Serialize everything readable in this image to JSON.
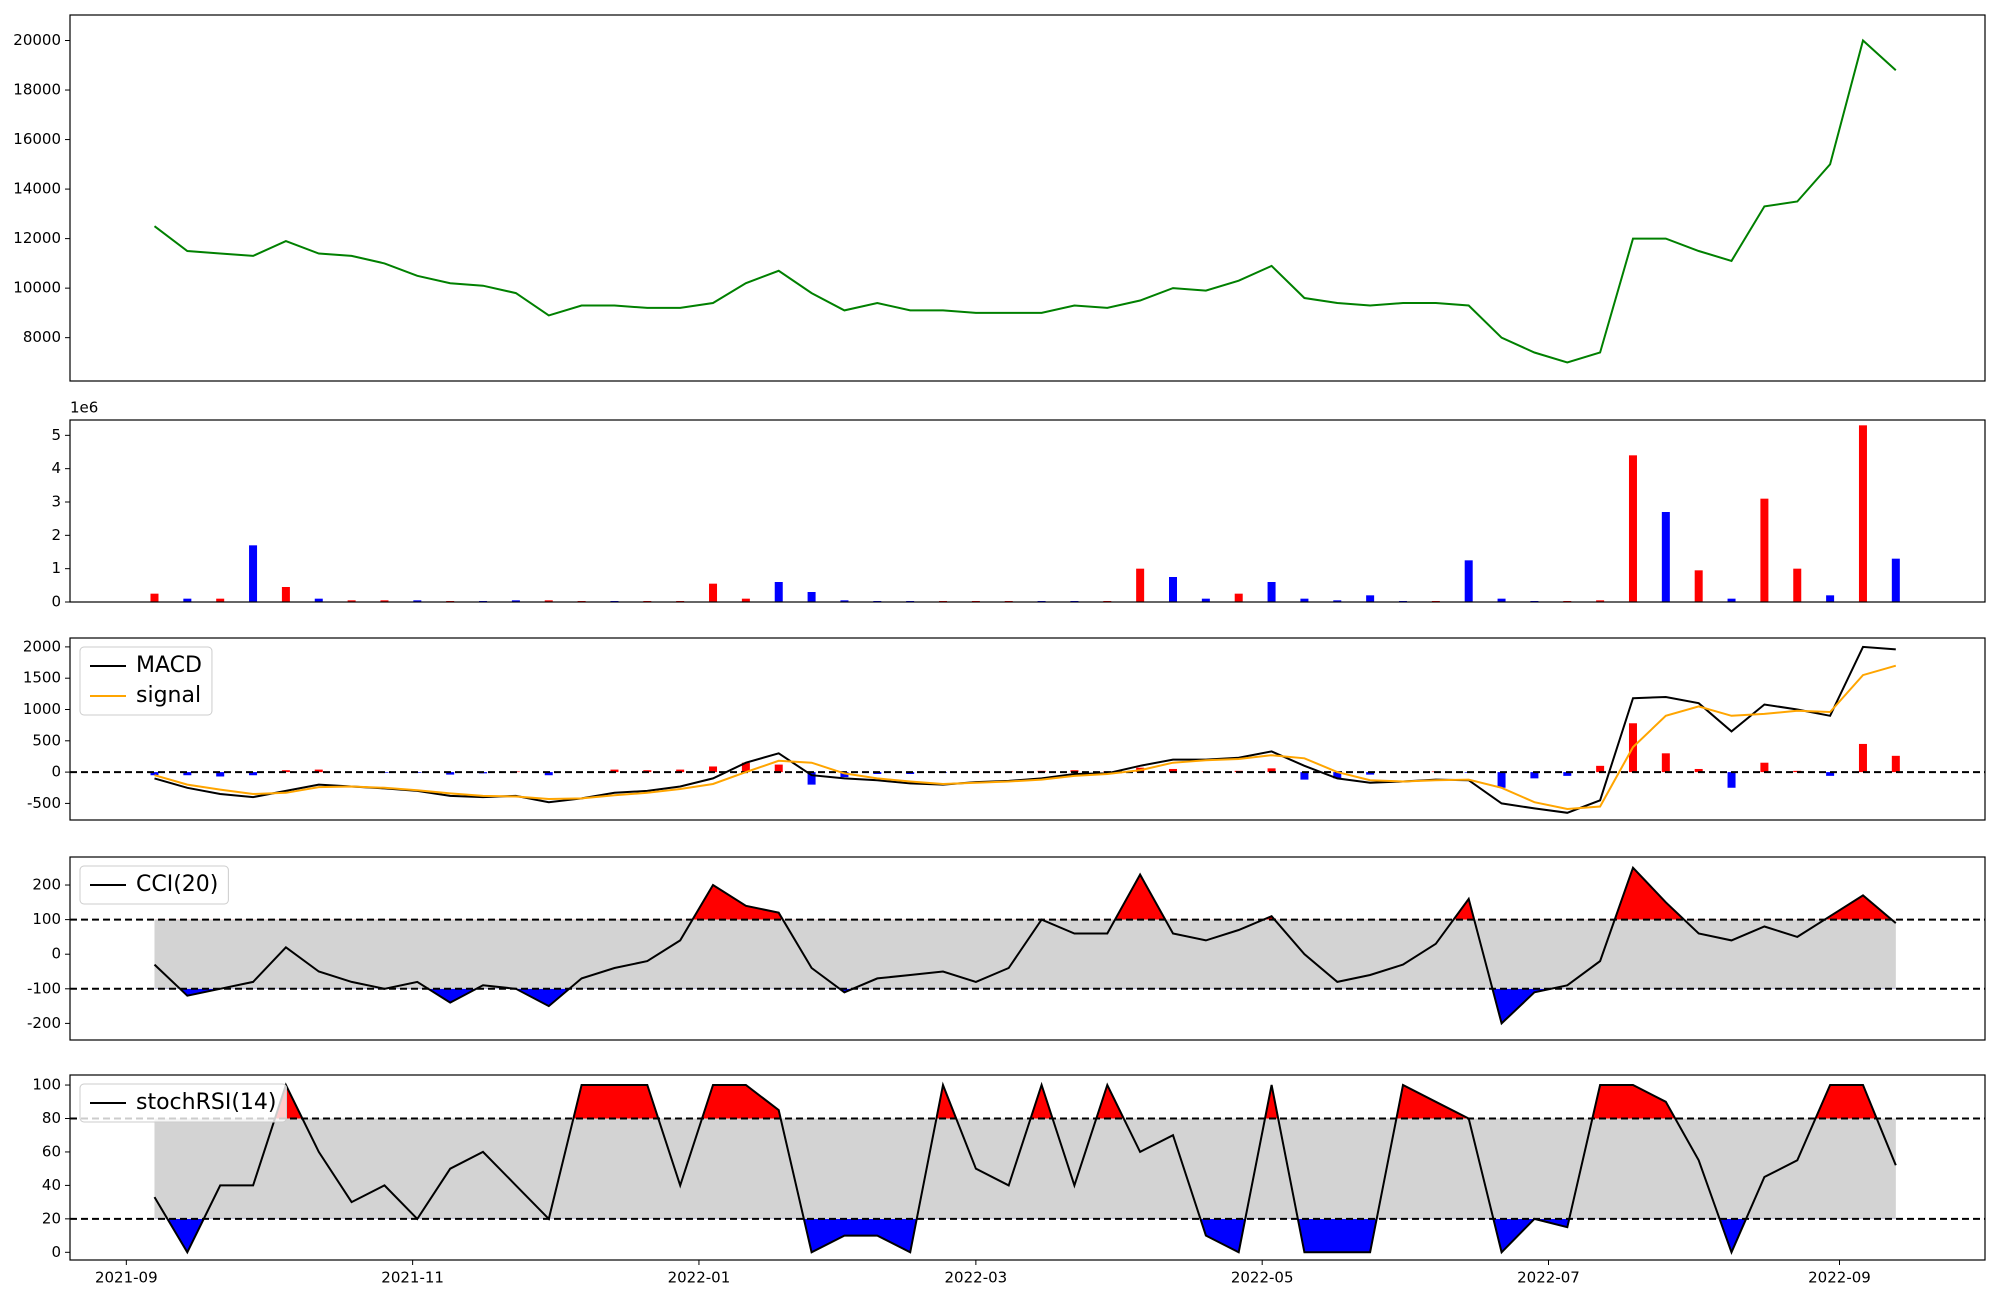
{
  "chart_data": [
    {
      "type": "line",
      "color": "#008000",
      "x": [
        "2021-09-07",
        "2021-09-14",
        "2021-09-21",
        "2021-09-28",
        "2021-10-05",
        "2021-10-12",
        "2021-10-19",
        "2021-10-26",
        "2021-11-02",
        "2021-11-09",
        "2021-11-16",
        "2021-11-23",
        "2021-11-30",
        "2021-12-07",
        "2021-12-14",
        "2021-12-21",
        "2021-12-28",
        "2022-01-04",
        "2022-01-11",
        "2022-01-18",
        "2022-01-25",
        "2022-02-01",
        "2022-02-08",
        "2022-02-15",
        "2022-02-22",
        "2022-03-01",
        "2022-03-08",
        "2022-03-15",
        "2022-03-22",
        "2022-03-29",
        "2022-04-05",
        "2022-04-12",
        "2022-04-19",
        "2022-04-26",
        "2022-05-03",
        "2022-05-10",
        "2022-05-17",
        "2022-05-24",
        "2022-05-31",
        "2022-06-07",
        "2022-06-14",
        "2022-06-21",
        "2022-06-28",
        "2022-07-05",
        "2022-07-12",
        "2022-07-19",
        "2022-07-26",
        "2022-08-02",
        "2022-08-09",
        "2022-08-16",
        "2022-08-23",
        "2022-08-30",
        "2022-09-06",
        "2022-09-13"
      ],
      "values": [
        12500,
        11500,
        11400,
        11300,
        11900,
        11400,
        11300,
        11000,
        10500,
        10200,
        10100,
        9800,
        8900,
        9300,
        9300,
        9200,
        9200,
        9400,
        10200,
        10700,
        9800,
        9100,
        9400,
        9100,
        9100,
        9000,
        9000,
        9000,
        9300,
        9200,
        9500,
        10000,
        9900,
        10300,
        10900,
        9600,
        9400,
        9300,
        9400,
        9400,
        9300,
        8000,
        7400,
        7000,
        7400,
        12000,
        12000,
        11500,
        11100,
        13300,
        13500,
        15000,
        20000,
        18800
      ],
      "xlim": [
        "2021-08-20",
        "2022-10-02"
      ],
      "ylim": [
        6250,
        21030
      ],
      "yticks": [
        8000,
        10000,
        12000,
        14000,
        16000,
        18000,
        20000
      ]
    },
    {
      "type": "bar",
      "offset_label": "1e6",
      "x": [
        "2021-09-07",
        "2021-09-14",
        "2021-09-21",
        "2021-09-28",
        "2021-10-05",
        "2021-10-12",
        "2021-10-19",
        "2021-10-26",
        "2021-11-02",
        "2021-11-09",
        "2021-11-16",
        "2021-11-23",
        "2021-11-30",
        "2021-12-07",
        "2021-12-14",
        "2021-12-21",
        "2021-12-28",
        "2022-01-04",
        "2022-01-11",
        "2022-01-18",
        "2022-01-25",
        "2022-02-01",
        "2022-02-08",
        "2022-02-15",
        "2022-02-22",
        "2022-03-01",
        "2022-03-08",
        "2022-03-15",
        "2022-03-22",
        "2022-03-29",
        "2022-04-05",
        "2022-04-12",
        "2022-04-19",
        "2022-04-26",
        "2022-05-03",
        "2022-05-10",
        "2022-05-17",
        "2022-05-24",
        "2022-05-31",
        "2022-06-07",
        "2022-06-14",
        "2022-06-21",
        "2022-06-28",
        "2022-07-05",
        "2022-07-12",
        "2022-07-19",
        "2022-07-26",
        "2022-08-02",
        "2022-08-09",
        "2022-08-16",
        "2022-08-23",
        "2022-08-30",
        "2022-09-06",
        "2022-09-13"
      ],
      "values": [
        0.25,
        0.1,
        0.1,
        1.7,
        0.45,
        0.1,
        0.05,
        0.05,
        0.05,
        0.03,
        0.03,
        0.05,
        0.05,
        0.03,
        0.03,
        0.03,
        0.03,
        0.55,
        0.1,
        0.6,
        0.3,
        0.05,
        0.03,
        0.03,
        0.03,
        0.03,
        0.03,
        0.03,
        0.03,
        0.03,
        1.0,
        0.75,
        0.1,
        0.25,
        0.6,
        0.1,
        0.05,
        0.2,
        0.03,
        0.03,
        1.25,
        0.1,
        0.03,
        0.03,
        0.05,
        4.4,
        2.7,
        0.95,
        0.1,
        3.1,
        1.0,
        0.2,
        5.3,
        1.3
      ],
      "colors": [
        "red",
        "blue",
        "red",
        "blue",
        "red",
        "blue",
        "red",
        "red",
        "blue",
        "red",
        "blue",
        "blue",
        "red",
        "red",
        "blue",
        "red",
        "red",
        "red",
        "red",
        "blue",
        "blue",
        "blue",
        "blue",
        "blue",
        "red",
        "red",
        "red",
        "blue",
        "blue",
        "red",
        "red",
        "blue",
        "blue",
        "red",
        "blue",
        "blue",
        "blue",
        "blue",
        "blue",
        "red",
        "blue",
        "blue",
        "blue",
        "red",
        "red",
        "red",
        "blue",
        "red",
        "blue",
        "red",
        "red",
        "blue",
        "red",
        "blue"
      ],
      "xlim": [
        "2021-08-20",
        "2022-10-02"
      ],
      "ylim": [
        0,
        5.46
      ],
      "yticks": [
        0,
        1,
        2,
        3,
        4,
        5
      ]
    },
    {
      "type": "line",
      "legend": "upper left",
      "hlines": [
        0
      ],
      "x": [
        "2021-09-07",
        "2021-09-14",
        "2021-09-21",
        "2021-09-28",
        "2021-10-05",
        "2021-10-12",
        "2021-10-19",
        "2021-10-26",
        "2021-11-02",
        "2021-11-09",
        "2021-11-16",
        "2021-11-23",
        "2021-11-30",
        "2021-12-07",
        "2021-12-14",
        "2021-12-21",
        "2021-12-28",
        "2022-01-04",
        "2022-01-11",
        "2022-01-18",
        "2022-01-25",
        "2022-02-01",
        "2022-02-08",
        "2022-02-15",
        "2022-02-22",
        "2022-03-01",
        "2022-03-08",
        "2022-03-15",
        "2022-03-22",
        "2022-03-29",
        "2022-04-05",
        "2022-04-12",
        "2022-04-19",
        "2022-04-26",
        "2022-05-03",
        "2022-05-10",
        "2022-05-17",
        "2022-05-24",
        "2022-05-31",
        "2022-06-07",
        "2022-06-14",
        "2022-06-21",
        "2022-06-28",
        "2022-07-05",
        "2022-07-12",
        "2022-07-19",
        "2022-07-26",
        "2022-08-02",
        "2022-08-09",
        "2022-08-16",
        "2022-08-23",
        "2022-08-30",
        "2022-09-06",
        "2022-09-13"
      ],
      "series": [
        {
          "name": "MACD",
          "color": "#000000",
          "values": [
            -100,
            -250,
            -350,
            -400,
            -300,
            -200,
            -230,
            -260,
            -300,
            -380,
            -400,
            -380,
            -480,
            -420,
            -330,
            -300,
            -230,
            -100,
            150,
            300,
            -50,
            -100,
            -130,
            -180,
            -200,
            -160,
            -140,
            -100,
            -30,
            -20,
            100,
            200,
            200,
            230,
            330,
            100,
            -100,
            -170,
            -150,
            -120,
            -130,
            -500,
            -580,
            -650,
            -450,
            1180,
            1200,
            1100,
            650,
            1080,
            1000,
            900,
            2000,
            1960
          ]
        },
        {
          "name": "signal",
          "color": "#ffa500",
          "values": [
            -50,
            -200,
            -280,
            -350,
            -330,
            -240,
            -230,
            -250,
            -290,
            -340,
            -380,
            -390,
            -430,
            -420,
            -370,
            -330,
            -270,
            -190,
            0,
            180,
            150,
            -20,
            -100,
            -150,
            -190,
            -170,
            -150,
            -120,
            -60,
            -30,
            30,
            150,
            190,
            210,
            270,
            220,
            0,
            -130,
            -150,
            -130,
            -120,
            -250,
            -480,
            -590,
            -550,
            400,
            900,
            1050,
            900,
            930,
            980,
            960,
            1550,
            1700
          ]
        }
      ],
      "histogram": [
        -50,
        -50,
        -70,
        -50,
        30,
        40,
        0,
        -10,
        -10,
        -40,
        -20,
        10,
        -50,
        0,
        40,
        30,
        40,
        90,
        150,
        120,
        -200,
        -80,
        -30,
        -30,
        -10,
        10,
        10,
        20,
        30,
        10,
        70,
        50,
        10,
        20,
        60,
        -120,
        -100,
        -40,
        0,
        10,
        -10,
        -250,
        -100,
        -60,
        100,
        780,
        300,
        50,
        -250,
        150,
        20,
        -60,
        450,
        260
      ],
      "xlim": [
        "2021-08-20",
        "2022-10-02"
      ],
      "ylim": [
        -765,
        2142
      ],
      "yticks": [
        -500,
        0,
        500,
        1000,
        1500,
        2000
      ]
    },
    {
      "type": "oscillator",
      "legend": "upper left",
      "upper": 100,
      "lower": -100,
      "band_color": "#d3d3d3",
      "over_color": "red",
      "under_color": "blue",
      "x": [
        "2021-09-07",
        "2021-09-14",
        "2021-09-21",
        "2021-09-28",
        "2021-10-05",
        "2021-10-12",
        "2021-10-19",
        "2021-10-26",
        "2021-11-02",
        "2021-11-09",
        "2021-11-16",
        "2021-11-23",
        "2021-11-30",
        "2021-12-07",
        "2021-12-14",
        "2021-12-21",
        "2021-12-28",
        "2022-01-04",
        "2022-01-11",
        "2022-01-18",
        "2022-01-25",
        "2022-02-01",
        "2022-02-08",
        "2022-02-15",
        "2022-02-22",
        "2022-03-01",
        "2022-03-08",
        "2022-03-15",
        "2022-03-22",
        "2022-03-29",
        "2022-04-05",
        "2022-04-12",
        "2022-04-19",
        "2022-04-26",
        "2022-05-03",
        "2022-05-10",
        "2022-05-17",
        "2022-05-24",
        "2022-05-31",
        "2022-06-07",
        "2022-06-14",
        "2022-06-21",
        "2022-06-28",
        "2022-07-05",
        "2022-07-12",
        "2022-07-19",
        "2022-07-26",
        "2022-08-02",
        "2022-08-09",
        "2022-08-16",
        "2022-08-23",
        "2022-08-30",
        "2022-09-06",
        "2022-09-13"
      ],
      "series": [
        {
          "name": "CCI(20)",
          "color": "#000000",
          "values": [
            -30,
            -120,
            -100,
            -80,
            20,
            -50,
            -80,
            -100,
            -80,
            -140,
            -90,
            -100,
            -150,
            -70,
            -40,
            -20,
            40,
            200,
            140,
            120,
            -40,
            -110,
            -70,
            -60,
            -50,
            -80,
            -40,
            100,
            60,
            60,
            230,
            60,
            40,
            70,
            110,
            0,
            -80,
            -60,
            -30,
            30,
            160,
            -200,
            -110,
            -90,
            -20,
            250,
            150,
            60,
            40,
            80,
            50,
            110,
            170,
            90
          ]
        }
      ],
      "xlim": [
        "2021-08-20",
        "2022-10-02"
      ],
      "ylim": [
        -248,
        281
      ],
      "yticks": [
        -200,
        -100,
        0,
        100,
        200
      ]
    },
    {
      "type": "oscillator",
      "legend": "upper left",
      "upper": 80,
      "lower": 20,
      "band_color": "#d3d3d3",
      "over_color": "red",
      "under_color": "blue",
      "x": [
        "2021-09-07",
        "2021-09-14",
        "2021-09-21",
        "2021-09-28",
        "2021-10-05",
        "2021-10-12",
        "2021-10-19",
        "2021-10-26",
        "2021-11-02",
        "2021-11-09",
        "2021-11-16",
        "2021-11-23",
        "2021-11-30",
        "2021-12-07",
        "2021-12-14",
        "2021-12-21",
        "2021-12-28",
        "2022-01-04",
        "2022-01-11",
        "2022-01-18",
        "2022-01-25",
        "2022-02-01",
        "2022-02-08",
        "2022-02-15",
        "2022-02-22",
        "2022-03-01",
        "2022-03-08",
        "2022-03-15",
        "2022-03-22",
        "2022-03-29",
        "2022-04-05",
        "2022-04-12",
        "2022-04-19",
        "2022-04-26",
        "2022-05-03",
        "2022-05-10",
        "2022-05-17",
        "2022-05-24",
        "2022-05-31",
        "2022-06-07",
        "2022-06-14",
        "2022-06-21",
        "2022-06-28",
        "2022-07-05",
        "2022-07-12",
        "2022-07-19",
        "2022-07-26",
        "2022-08-02",
        "2022-08-09",
        "2022-08-16",
        "2022-08-23",
        "2022-08-30",
        "2022-09-06",
        "2022-09-13"
      ],
      "series": [
        {
          "name": "stochRSI(14)",
          "color": "#000000",
          "values": [
            33,
            0,
            40,
            40,
            100,
            60,
            30,
            40,
            20,
            50,
            60,
            40,
            20,
            100,
            100,
            100,
            40,
            100,
            100,
            85,
            0,
            10,
            10,
            0,
            100,
            50,
            40,
            100,
            40,
            100,
            60,
            70,
            10,
            0,
            100,
            0,
            0,
            0,
            100,
            90,
            80,
            0,
            20,
            15,
            100,
            100,
            90,
            55,
            0,
            45,
            55,
            100,
            100,
            52
          ]
        }
      ],
      "xlim": [
        "2021-08-20",
        "2022-10-02"
      ],
      "ylim": [
        -4.6,
        106
      ],
      "yticks": [
        0,
        20,
        40,
        60,
        80,
        100
      ],
      "xticks": [
        {
          "value": "2021-09-01",
          "label": "2021-09"
        },
        {
          "value": "2021-11-01",
          "label": "2021-11"
        },
        {
          "value": "2022-01-01",
          "label": "2022-01"
        },
        {
          "value": "2022-03-01",
          "label": "2022-03"
        },
        {
          "value": "2022-05-01",
          "label": "2022-05"
        },
        {
          "value": "2022-07-01",
          "label": "2022-07"
        },
        {
          "value": "2022-09-01",
          "label": "2022-09"
        }
      ]
    }
  ]
}
